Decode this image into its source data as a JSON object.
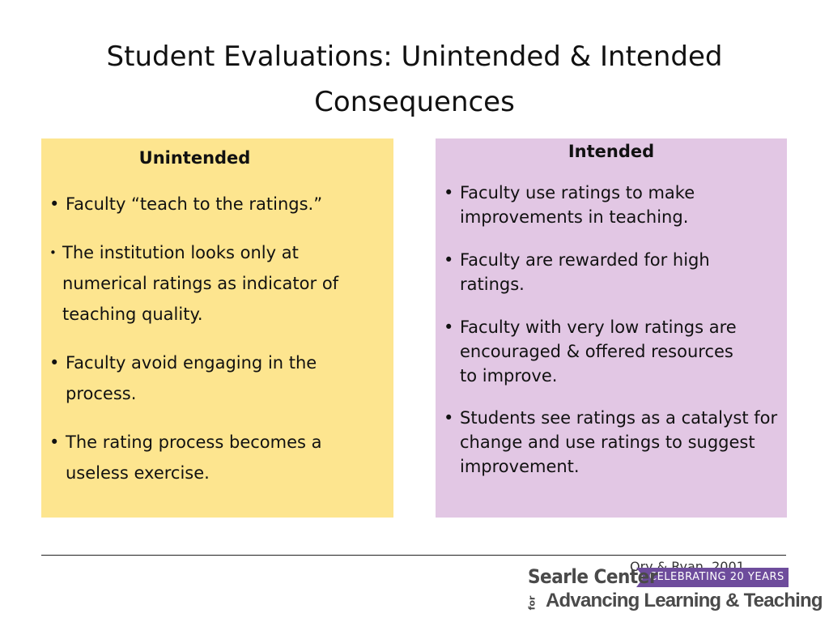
{
  "title": "Student Evaluations: Unintended & Intended Consequences",
  "unintended": {
    "heading": "Unintended",
    "items": [
      "Faculty “teach to the ratings.”",
      "The institution looks only at numerical ratings as indicator of teaching quality.",
      "Faculty avoid engaging in the process.",
      "The rating process becomes a useless exercise."
    ]
  },
  "intended": {
    "heading": "Intended",
    "items": [
      "Faculty use ratings to make improvements in teaching.",
      "Faculty are rewarded for high ratings.",
      "Faculty with very low ratings are encouraged & offered resources to improve.",
      "Students see ratings as a catalyst for change and use ratings to suggest improvement."
    ]
  },
  "footer": {
    "citation": "Ory & Ryan, 2001",
    "logo": {
      "name": "Searle Center",
      "banner": "CELEBRATING 20 YEARS",
      "for": "for",
      "tagline": "Advancing Learning & Teaching"
    }
  },
  "colors": {
    "unintended_bg": "#fde58f",
    "intended_bg": "#e2c7e4",
    "logo_banner": "#6e4c9c"
  }
}
